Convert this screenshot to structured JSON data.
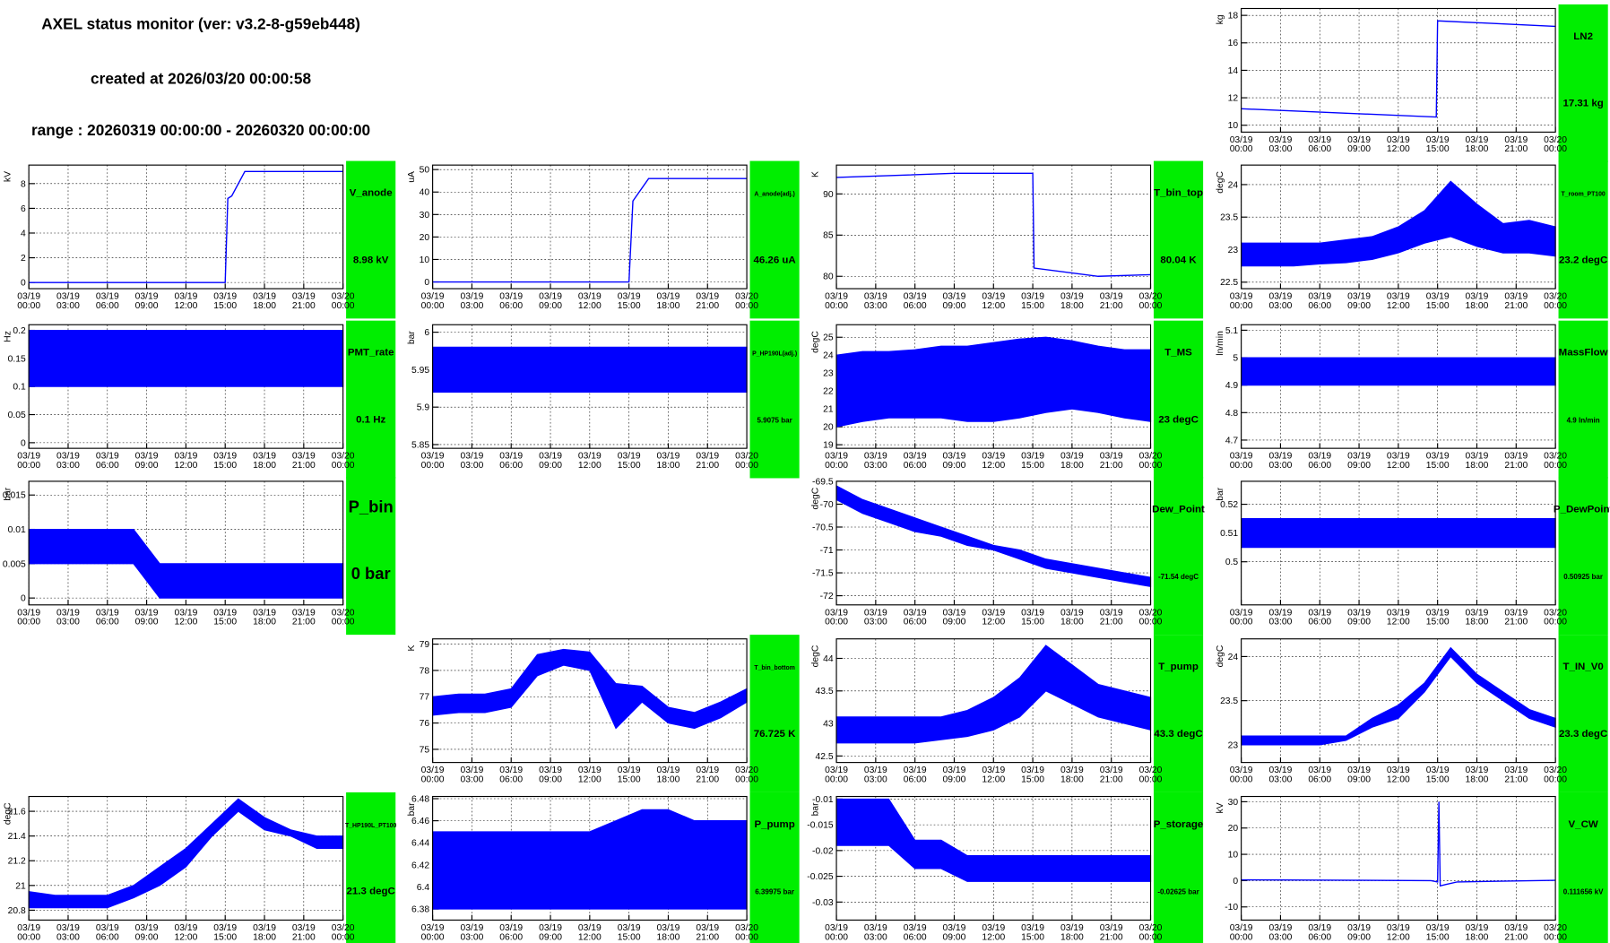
{
  "header": {
    "title": "AXEL status monitor (ver: v3.2-8-g59eb448)",
    "created": "created at 2026/03/20 00:00:58",
    "range": "range : 20260319 00:00:00 - 20260320 00:00:00"
  },
  "x_axis": {
    "xlim": [
      0,
      24
    ],
    "xticks": [
      {
        "value": 0,
        "date": "03/19",
        "time": "00:00"
      },
      {
        "value": 3,
        "date": "03/19",
        "time": "03:00"
      },
      {
        "value": 6,
        "date": "03/19",
        "time": "06:00"
      },
      {
        "value": 9,
        "date": "03/19",
        "time": "09:00"
      },
      {
        "value": 12,
        "date": "03/19",
        "time": "12:00"
      },
      {
        "value": 15,
        "date": "03/19",
        "time": "15:00"
      },
      {
        "value": 18,
        "date": "03/19",
        "time": "18:00"
      },
      {
        "value": 21,
        "date": "03/19",
        "time": "21:00"
      },
      {
        "value": 24,
        "date": "03/20",
        "time": "00:00"
      }
    ]
  },
  "chart_data": [
    {
      "type": "line",
      "title": "LN2",
      "value_text": "17.31 kg",
      "ylabel": "kg",
      "color": "#0000ff",
      "grid": true,
      "ylim": [
        9.5,
        18.5
      ],
      "yticks": [
        10,
        12,
        14,
        16,
        18
      ],
      "x": [
        0,
        14.9,
        15,
        24
      ],
      "values": [
        11.2,
        10.6,
        17.6,
        17.2
      ]
    },
    {
      "type": "line",
      "title": "V_anode",
      "value_text": "8.98 kV",
      "ylabel": "kV",
      "color": "#0000ff",
      "grid": true,
      "ylim": [
        -0.5,
        9.5
      ],
      "yticks": [
        0,
        2,
        4,
        6,
        8
      ],
      "x": [
        0,
        15,
        15.2,
        15.5,
        16.5,
        24
      ],
      "values": [
        0,
        0,
        6.8,
        7,
        8.98,
        8.98
      ]
    },
    {
      "type": "line",
      "title": "A_anode(adj.)",
      "value_text": "46.26 uA",
      "ylabel": "uA",
      "color": "#0000ff",
      "grid": true,
      "ylim": [
        -3,
        52
      ],
      "yticks": [
        0,
        10,
        20,
        30,
        40,
        50
      ],
      "x": [
        0,
        15,
        15.3,
        16.5,
        24
      ],
      "values": [
        0,
        0,
        36,
        46,
        46
      ]
    },
    {
      "type": "line",
      "title": "T_bin_top",
      "value_text": "80.04 K",
      "ylabel": "K",
      "color": "#0000ff",
      "grid": true,
      "ylim": [
        78.5,
        93.5
      ],
      "yticks": [
        80,
        85,
        90
      ],
      "x": [
        0,
        9,
        15,
        15.1,
        20,
        24
      ],
      "values": [
        92,
        92.5,
        92.5,
        81,
        80,
        80.2
      ]
    },
    {
      "type": "band",
      "title": "T_room_PT100",
      "value_text": "23.2 degC",
      "ylabel": "degC",
      "color": "#0000ff",
      "grid": true,
      "ylim": [
        22.4,
        24.3
      ],
      "yticks": [
        22.5,
        23,
        23.5,
        24
      ],
      "x": [
        0,
        2,
        4,
        6,
        8,
        10,
        12,
        14,
        16,
        18,
        20,
        22,
        24
      ],
      "low": [
        22.75,
        22.75,
        22.75,
        22.78,
        22.8,
        22.85,
        22.95,
        23.1,
        23.2,
        23.05,
        22.95,
        22.95,
        22.9
      ],
      "high": [
        23.1,
        23.1,
        23.1,
        23.1,
        23.15,
        23.2,
        23.35,
        23.6,
        24.05,
        23.7,
        23.4,
        23.45,
        23.35
      ]
    },
    {
      "type": "band",
      "title": "PMT_rate",
      "value_text": "0.1 Hz",
      "ylabel": "Hz",
      "color": "#0000ff",
      "grid": true,
      "ylim": [
        -0.01,
        0.21
      ],
      "yticks": [
        0,
        0.05,
        0.1,
        0.15,
        0.2
      ],
      "x": [
        0,
        2,
        4,
        6,
        8,
        10,
        12,
        14,
        16,
        18,
        20,
        22,
        24
      ],
      "low": [
        0.1,
        0.1,
        0.1,
        0.1,
        0.1,
        0.1,
        0.1,
        0.1,
        0.1,
        0.1,
        0.1,
        0.1,
        0.1
      ],
      "high": [
        0.2,
        0.2,
        0.2,
        0.2,
        0.2,
        0.2,
        0.2,
        0.2,
        0.2,
        0.2,
        0.2,
        0.2,
        0.2
      ]
    },
    {
      "type": "band",
      "title": "P_HP190L(adj.)",
      "value_text": "5.9075 bar",
      "ylabel": "bar",
      "color": "#0000ff",
      "grid": true,
      "ylim": [
        5.845,
        6.01
      ],
      "yticks": [
        5.85,
        5.9,
        5.95,
        6
      ],
      "x": [
        0,
        2,
        4,
        6,
        8,
        10,
        12,
        14,
        16,
        18,
        20,
        22,
        24
      ],
      "low": [
        5.92,
        5.92,
        5.92,
        5.92,
        5.92,
        5.92,
        5.92,
        5.92,
        5.92,
        5.92,
        5.92,
        5.92,
        5.92
      ],
      "high": [
        5.98,
        5.98,
        5.98,
        5.98,
        5.98,
        5.98,
        5.98,
        5.98,
        5.98,
        5.98,
        5.98,
        5.98,
        5.98
      ]
    },
    {
      "type": "band",
      "title": "T_MS",
      "value_text": "23 degC",
      "ylabel": "degC",
      "color": "#0000ff",
      "grid": true,
      "ylim": [
        18.8,
        25.7
      ],
      "yticks": [
        19,
        20,
        21,
        22,
        23,
        24,
        25
      ],
      "x": [
        0,
        2,
        4,
        6,
        8,
        10,
        12,
        14,
        16,
        18,
        20,
        22,
        24
      ],
      "low": [
        20,
        20.3,
        20.5,
        20.5,
        20.5,
        20.3,
        20.3,
        20.5,
        20.8,
        21,
        20.8,
        20.5,
        20.3
      ],
      "high": [
        24,
        24.2,
        24.2,
        24.3,
        24.5,
        24.5,
        24.7,
        24.9,
        25,
        24.8,
        24.5,
        24.3,
        24.3
      ]
    },
    {
      "type": "band",
      "title": "MassFlow",
      "value_text": "4.9 ln/min",
      "ylabel": "ln/min",
      "color": "#0000ff",
      "grid": true,
      "ylim": [
        4.67,
        5.12
      ],
      "yticks": [
        4.7,
        4.8,
        4.9,
        5,
        5.1
      ],
      "x": [
        0,
        2,
        4,
        6,
        8,
        10,
        12,
        14,
        16,
        18,
        20,
        22,
        24
      ],
      "low": [
        4.9,
        4.9,
        4.9,
        4.9,
        4.9,
        4.9,
        4.9,
        4.9,
        4.9,
        4.9,
        4.9,
        4.9,
        4.9
      ],
      "high": [
        5,
        5,
        5,
        5,
        5,
        5,
        5,
        5,
        5,
        5,
        5,
        5,
        5
      ]
    },
    {
      "type": "band",
      "title": "P_bin",
      "value_text": "0 bar",
      "ylabel": "bar",
      "color": "#0000ff",
      "grid": true,
      "ylim": [
        -0.001,
        0.017
      ],
      "yticks": [
        0,
        0.005,
        0.01,
        0.015
      ],
      "x": [
        0,
        2,
        4,
        6,
        8,
        10,
        12,
        14,
        16,
        18,
        20,
        22,
        24
      ],
      "low": [
        0.005,
        0.005,
        0.005,
        0.005,
        0.005,
        0,
        0,
        0,
        0,
        0,
        0,
        0,
        0
      ],
      "high": [
        0.01,
        0.01,
        0.01,
        0.01,
        0.01,
        0.005,
        0.005,
        0.005,
        0.005,
        0.005,
        0.005,
        0.005,
        0.005
      ]
    },
    {
      "type": "band",
      "title": "Dew_Point",
      "value_text": "-71.54 degC",
      "ylabel": "degC",
      "color": "#0000ff",
      "grid": true,
      "ylim": [
        -72.2,
        -69.5
      ],
      "yticks": [
        -72,
        -71.5,
        -71,
        -70.5,
        -70,
        -69.5
      ],
      "x": [
        0,
        2,
        4,
        6,
        8,
        10,
        12,
        14,
        16,
        18,
        20,
        22,
        24
      ],
      "low": [
        -69.9,
        -70.2,
        -70.4,
        -70.6,
        -70.7,
        -70.9,
        -71,
        -71.2,
        -71.4,
        -71.5,
        -71.6,
        -71.7,
        -71.8
      ],
      "high": [
        -69.6,
        -69.9,
        -70.1,
        -70.3,
        -70.5,
        -70.7,
        -70.9,
        -71,
        -71.2,
        -71.3,
        -71.4,
        -71.5,
        -71.6
      ]
    },
    {
      "type": "band",
      "title": "P_DewPoint",
      "value_text": "0.50925 bar",
      "ylabel": "bar",
      "color": "#0000ff",
      "grid": true,
      "ylim": [
        0.485,
        0.528
      ],
      "yticks": [
        0.5,
        0.51,
        0.52
      ],
      "x": [
        0,
        2,
        4,
        6,
        8,
        10,
        12,
        14,
        16,
        18,
        20,
        22,
        24
      ],
      "low": [
        0.505,
        0.505,
        0.505,
        0.505,
        0.505,
        0.505,
        0.505,
        0.505,
        0.505,
        0.505,
        0.505,
        0.505,
        0.505
      ],
      "high": [
        0.515,
        0.515,
        0.515,
        0.515,
        0.515,
        0.515,
        0.515,
        0.515,
        0.515,
        0.515,
        0.515,
        0.515,
        0.515
      ]
    },
    {
      "type": "band",
      "title": "T_bin_bottom",
      "value_text": "76.725 K",
      "ylabel": "K",
      "color": "#0000ff",
      "grid": true,
      "ylim": [
        74.5,
        79.2
      ],
      "yticks": [
        75,
        76,
        77,
        78,
        79
      ],
      "x": [
        0,
        2,
        4,
        6,
        8,
        10,
        12,
        14,
        16,
        18,
        20,
        22,
        24
      ],
      "low": [
        76.3,
        76.4,
        76.4,
        76.6,
        77.8,
        78.2,
        78,
        75.8,
        76.8,
        76,
        75.8,
        76.2,
        76.8
      ],
      "high": [
        77,
        77.1,
        77.1,
        77.3,
        78.6,
        78.8,
        78.7,
        77.5,
        77.4,
        76.6,
        76.4,
        76.8,
        77.3
      ]
    },
    {
      "type": "band",
      "title": "T_pump",
      "value_text": "43.3 degC",
      "ylabel": "degC",
      "color": "#0000ff",
      "grid": true,
      "ylim": [
        42.4,
        44.3
      ],
      "yticks": [
        42.5,
        43,
        43.5,
        44
      ],
      "x": [
        0,
        2,
        4,
        6,
        8,
        10,
        12,
        14,
        16,
        18,
        20,
        22,
        24
      ],
      "low": [
        42.7,
        42.7,
        42.7,
        42.7,
        42.75,
        42.8,
        42.9,
        43.1,
        43.5,
        43.3,
        43.1,
        43,
        42.9
      ],
      "high": [
        43.1,
        43.1,
        43.1,
        43.1,
        43.1,
        43.2,
        43.4,
        43.7,
        44.2,
        43.9,
        43.6,
        43.5,
        43.4
      ]
    },
    {
      "type": "band",
      "title": "T_IN_V0",
      "value_text": "23.3 degC",
      "ylabel": "degC",
      "color": "#0000ff",
      "grid": true,
      "ylim": [
        22.8,
        24.2
      ],
      "yticks": [
        23,
        23.5,
        24
      ],
      "x": [
        0,
        2,
        4,
        6,
        8,
        10,
        12,
        14,
        16,
        18,
        20,
        22,
        24
      ],
      "low": [
        23,
        23,
        23,
        23,
        23.05,
        23.2,
        23.3,
        23.6,
        24,
        23.7,
        23.5,
        23.3,
        23.2
      ],
      "high": [
        23.1,
        23.1,
        23.1,
        23.1,
        23.1,
        23.3,
        23.45,
        23.7,
        24.1,
        23.8,
        23.6,
        23.4,
        23.3
      ]
    },
    {
      "type": "band",
      "title": "T_HP190L_PT100",
      "value_text": "21.3 degC",
      "ylabel": "degC",
      "color": "#0000ff",
      "grid": true,
      "ylim": [
        20.72,
        21.72
      ],
      "yticks": [
        20.8,
        21,
        21.2,
        21.4,
        21.6
      ],
      "x": [
        0,
        2,
        4,
        6,
        8,
        10,
        12,
        14,
        16,
        18,
        20,
        22,
        24
      ],
      "low": [
        20.82,
        20.82,
        20.82,
        20.82,
        20.9,
        21,
        21.15,
        21.4,
        21.6,
        21.45,
        21.4,
        21.3,
        21.3
      ],
      "high": [
        20.95,
        20.92,
        20.92,
        20.92,
        21,
        21.15,
        21.3,
        21.5,
        21.7,
        21.55,
        21.45,
        21.4,
        21.4
      ]
    },
    {
      "type": "band",
      "title": "P_pump",
      "value_text": "6.39975 bar",
      "ylabel": "bar",
      "color": "#0000ff",
      "grid": true,
      "ylim": [
        6.37,
        6.482
      ],
      "yticks": [
        6.38,
        6.4,
        6.42,
        6.44,
        6.46,
        6.48
      ],
      "x": [
        0,
        2,
        4,
        6,
        8,
        10,
        12,
        14,
        16,
        18,
        20,
        22,
        24
      ],
      "low": [
        6.38,
        6.38,
        6.38,
        6.38,
        6.38,
        6.38,
        6.38,
        6.38,
        6.38,
        6.38,
        6.38,
        6.38,
        6.38
      ],
      "high": [
        6.45,
        6.45,
        6.45,
        6.45,
        6.45,
        6.45,
        6.45,
        6.46,
        6.47,
        6.47,
        6.46,
        6.46,
        6.46
      ]
    },
    {
      "type": "band",
      "title": "P_storage",
      "value_text": "-0.02625 bar",
      "ylabel": "bar",
      "color": "#0000ff",
      "grid": true,
      "ylim": [
        -0.0335,
        -0.0095
      ],
      "yticks": [
        -0.03,
        -0.025,
        -0.02,
        -0.015,
        -0.01
      ],
      "x": [
        0,
        2,
        4,
        6,
        8,
        10,
        12,
        14,
        16,
        18,
        20,
        22,
        24
      ],
      "low": [
        -0.019,
        -0.019,
        -0.019,
        -0.0235,
        -0.0235,
        -0.026,
        -0.026,
        -0.026,
        -0.026,
        -0.026,
        -0.026,
        -0.026,
        -0.026
      ],
      "high": [
        -0.01,
        -0.01,
        -0.01,
        -0.018,
        -0.018,
        -0.021,
        -0.021,
        -0.021,
        -0.021,
        -0.021,
        -0.021,
        -0.021,
        -0.021
      ]
    },
    {
      "type": "line",
      "title": "V_CW",
      "value_text": "0.111656 kV",
      "ylabel": "kV",
      "color": "#0000ff",
      "grid": true,
      "ylim": [
        -15,
        32
      ],
      "yticks": [
        -10,
        0,
        10,
        20,
        30
      ],
      "x": [
        0,
        14.5,
        15,
        15.1,
        15.2,
        15.6,
        16.5,
        24
      ],
      "values": [
        0.3,
        0,
        -0.5,
        30,
        -2,
        -1.5,
        -0.5,
        0.1
      ]
    }
  ]
}
